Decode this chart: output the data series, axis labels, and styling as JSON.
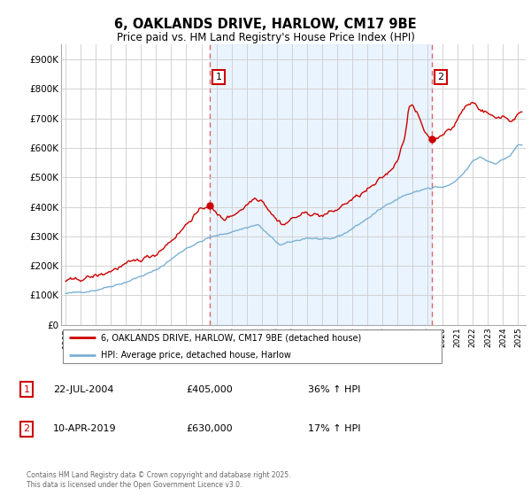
{
  "title": "6, OAKLANDS DRIVE, HARLOW, CM17 9BE",
  "subtitle": "Price paid vs. HM Land Registry's House Price Index (HPI)",
  "ylim": [
    0,
    950000
  ],
  "yticks": [
    0,
    100000,
    200000,
    300000,
    400000,
    500000,
    600000,
    700000,
    800000,
    900000
  ],
  "ytick_labels": [
    "£0",
    "£100K",
    "£200K",
    "£300K",
    "£400K",
    "£500K",
    "£600K",
    "£700K",
    "£800K",
    "£900K"
  ],
  "xlim_start": 1994.7,
  "xlim_end": 2025.5,
  "xticks": [
    1995,
    1996,
    1997,
    1998,
    1999,
    2000,
    2001,
    2002,
    2003,
    2004,
    2005,
    2006,
    2007,
    2008,
    2009,
    2010,
    2011,
    2012,
    2013,
    2014,
    2015,
    2016,
    2017,
    2018,
    2019,
    2020,
    2021,
    2022,
    2023,
    2024,
    2025
  ],
  "background_color": "#ffffff",
  "grid_color": "#cccccc",
  "sale1_x": 2004.54,
  "sale1_y": 405000,
  "sale1_label": "1",
  "sale2_x": 2019.27,
  "sale2_y": 630000,
  "sale2_label": "2",
  "vline_color": "#dd6666",
  "vline_style": "--",
  "fill_color": "#ddeeff",
  "fill_alpha": 0.6,
  "legend_line1": "6, OAKLANDS DRIVE, HARLOW, CM17 9BE (detached house)",
  "legend_line2": "HPI: Average price, detached house, Harlow",
  "line1_color": "#cc0000",
  "line2_color": "#7ab0d4",
  "annotation1_date": "22-JUL-2004",
  "annotation1_price": "£405,000",
  "annotation1_hpi": "36% ↑ HPI",
  "annotation2_date": "10-APR-2019",
  "annotation2_price": "£630,000",
  "annotation2_hpi": "17% ↑ HPI",
  "footer": "Contains HM Land Registry data © Crown copyright and database right 2025.\nThis data is licensed under the Open Government Licence v3.0."
}
